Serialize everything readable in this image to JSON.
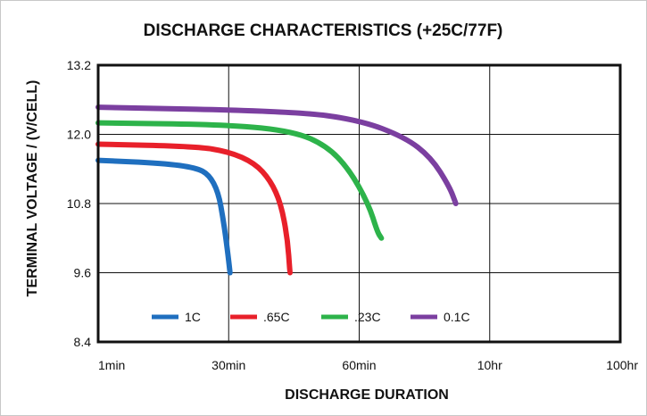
{
  "chart_data": {
    "type": "line",
    "title": "DISCHARGE CHARACTERISTICS (+25C/77F)",
    "xlabel": "DISCHARGE DURATION",
    "ylabel": "TERMINAL VOLTAGE / (V/CELL)",
    "x_scale": "categorical-gridded",
    "x_tick_labels": [
      "1min",
      "30min",
      "60min",
      "10hr",
      "100hr"
    ],
    "y_ticks": [
      "13.2",
      "12.0",
      "10.8",
      "9.6",
      "8.4"
    ],
    "ylim": [
      8.4,
      13.2
    ],
    "grid": true,
    "legend_position": "bottom-left inside plot",
    "x_note": "x positions are expressed in grid divisions (0 = 1min, 1 = 30min, 2 = 60min, 3 = 10hr, 4 = 100hr)",
    "series": [
      {
        "name": "1C",
        "color": "#1f6fbf",
        "points": [
          [
            0,
            11.55
          ],
          [
            0.5,
            11.5
          ],
          [
            0.75,
            11.42
          ],
          [
            0.85,
            11.3
          ],
          [
            0.92,
            11.0
          ],
          [
            0.96,
            10.5
          ],
          [
            0.99,
            10.0
          ],
          [
            1.01,
            9.6
          ]
        ]
      },
      {
        "name": ".65C",
        "color": "#e8202a",
        "points": [
          [
            0,
            11.83
          ],
          [
            0.75,
            11.79
          ],
          [
            1.0,
            11.7
          ],
          [
            1.2,
            11.5
          ],
          [
            1.32,
            11.2
          ],
          [
            1.4,
            10.8
          ],
          [
            1.45,
            10.2
          ],
          [
            1.47,
            9.6
          ]
        ]
      },
      {
        "name": ".23C",
        "color": "#2db34a",
        "points": [
          [
            0,
            12.2
          ],
          [
            1.0,
            12.17
          ],
          [
            1.5,
            12.05
          ],
          [
            1.75,
            11.8
          ],
          [
            1.92,
            11.4
          ],
          [
            2.07,
            10.8
          ],
          [
            2.14,
            10.3
          ],
          [
            2.17,
            10.2
          ]
        ]
      },
      {
        "name": "0.1C",
        "color": "#7b3fa0",
        "points": [
          [
            0,
            12.47
          ],
          [
            1.5,
            12.4
          ],
          [
            2.0,
            12.25
          ],
          [
            2.35,
            11.95
          ],
          [
            2.55,
            11.6
          ],
          [
            2.69,
            11.1
          ],
          [
            2.74,
            10.8
          ]
        ]
      }
    ]
  }
}
